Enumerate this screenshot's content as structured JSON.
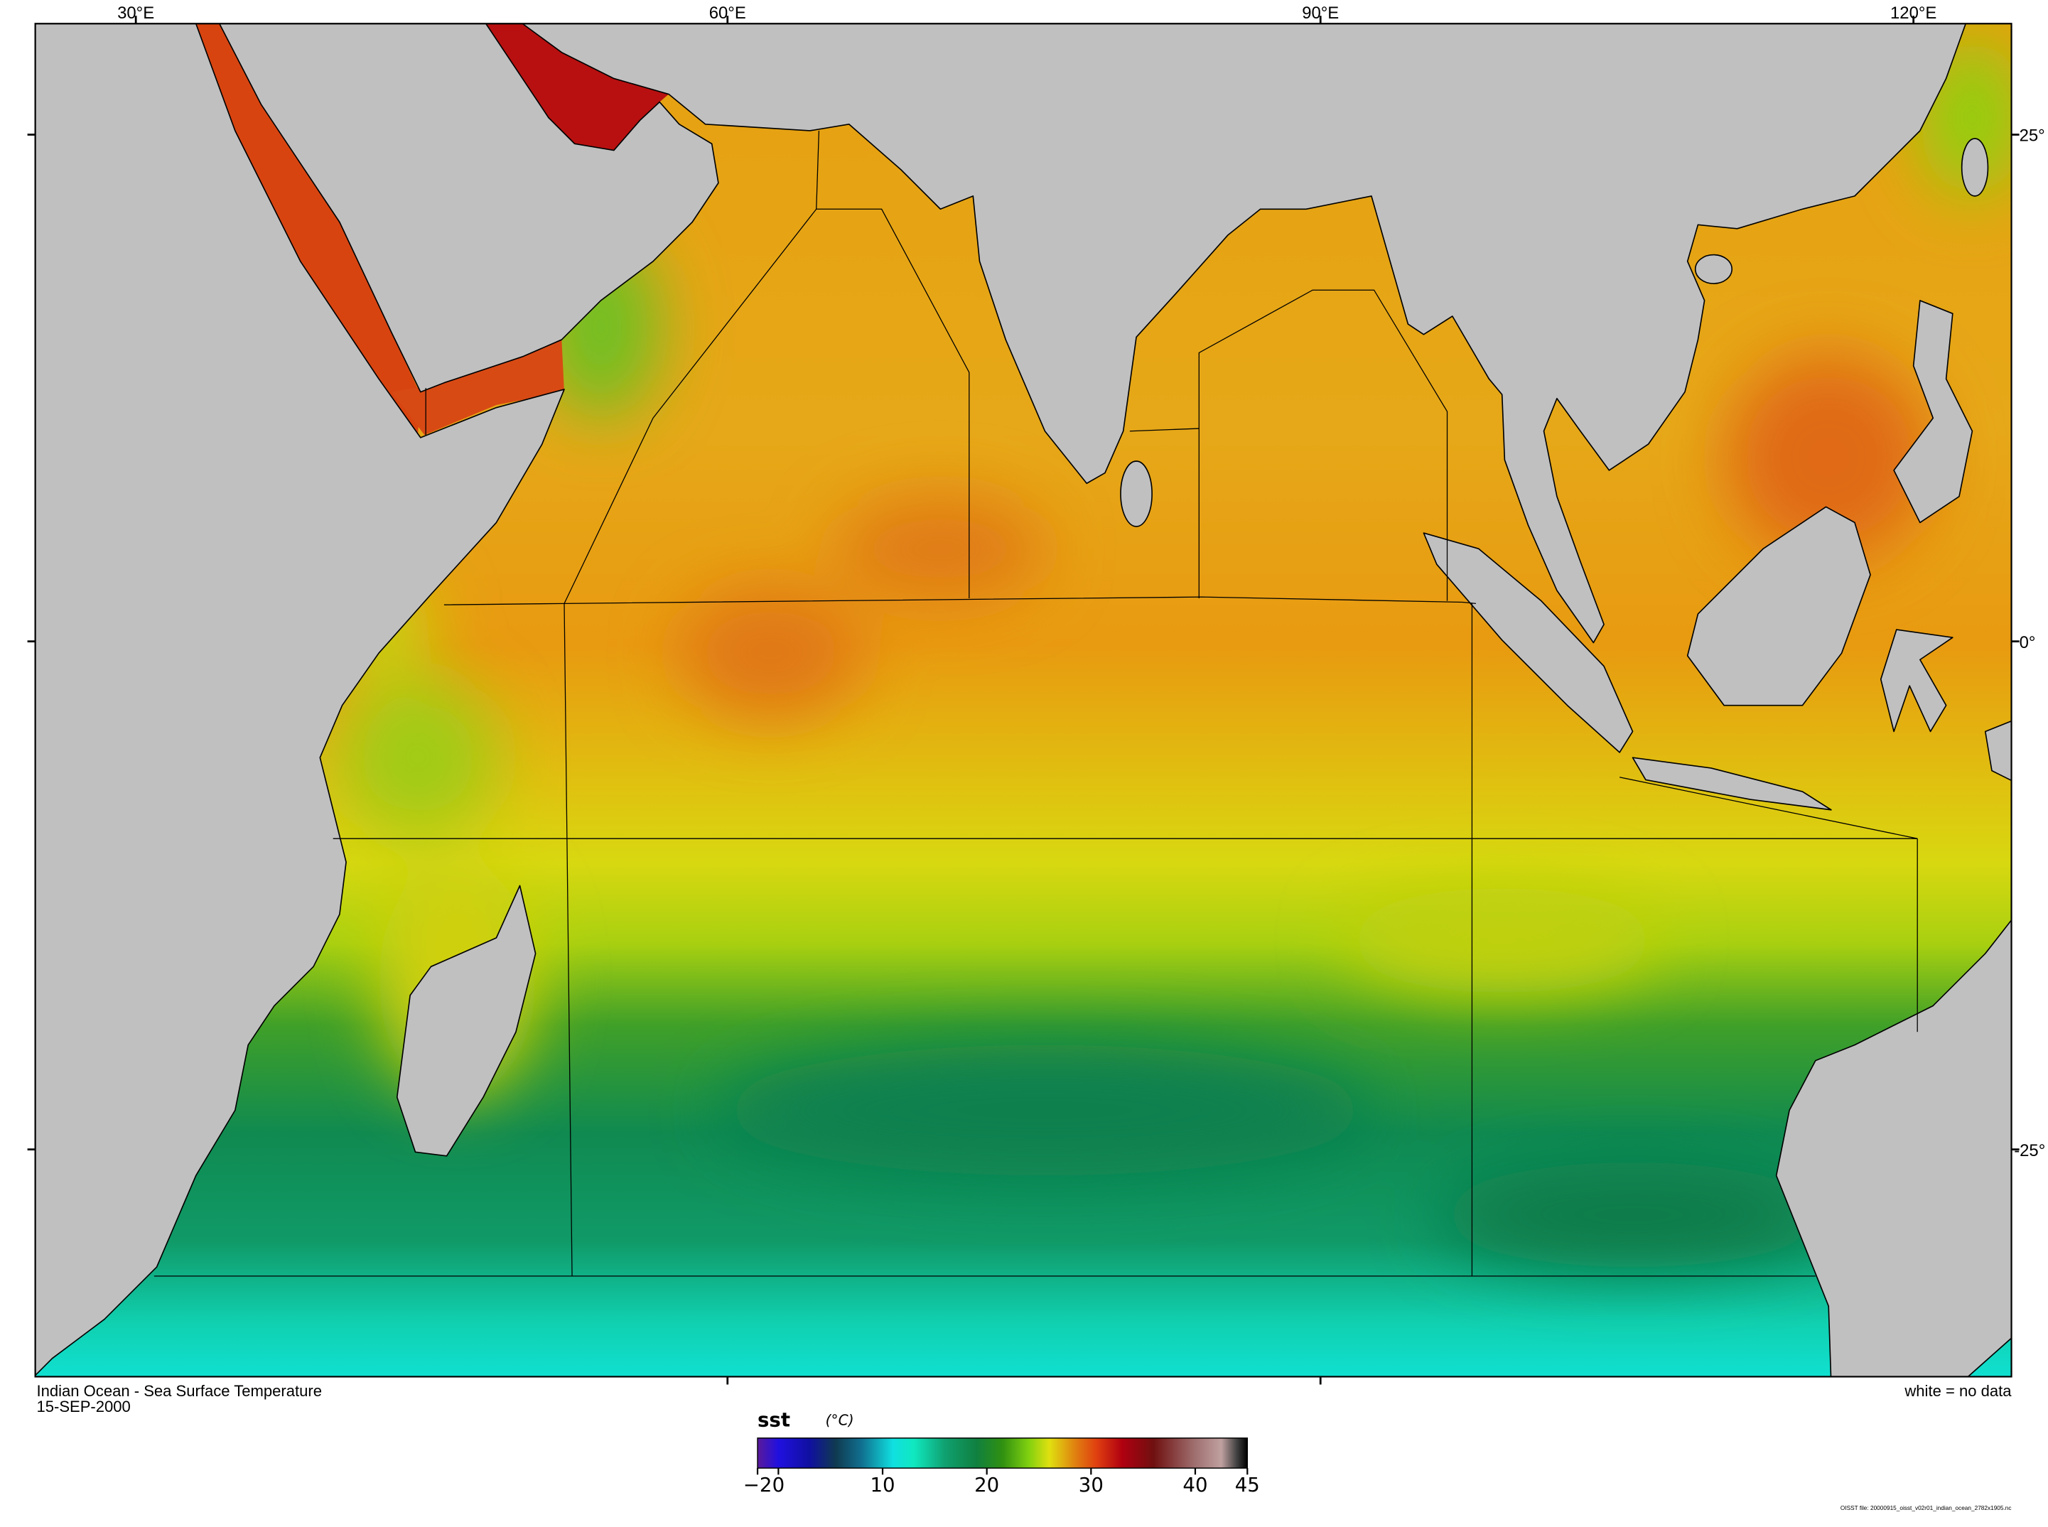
{
  "map": {
    "title": "Indian Ocean - Sea Surface Temperature",
    "date": "15-SEP-2000",
    "no_data_note": "white = no data",
    "file_note": "OISST file: 20000915_oisst_v02r01_indian_ocean_2782x1905.nc",
    "longitude_labels": [
      "30°E",
      "60°E",
      "90°E",
      "120°E"
    ],
    "latitude_labels": [
      "25°",
      "0°",
      "-25°"
    ],
    "land_color": "#c0c0c0",
    "no_data_color": "#ffffff"
  },
  "colorbar": {
    "variable": "sst",
    "unit": "(°C)",
    "range": [
      -2,
      45
    ],
    "ticks": [
      {
        "value": -2,
        "label": "-2"
      },
      {
        "value": 0,
        "label": "0"
      },
      {
        "value": 10,
        "label": "10"
      },
      {
        "value": 20,
        "label": "20"
      },
      {
        "value": 30,
        "label": "30"
      },
      {
        "value": 40,
        "label": "40"
      },
      {
        "value": 45,
        "label": "45"
      }
    ],
    "colors": [
      {
        "value": -2,
        "color": "#5a1a9a"
      },
      {
        "value": 0,
        "color": "#2010e0"
      },
      {
        "value": 3,
        "color": "#1010a0"
      },
      {
        "value": 5.5,
        "color": "#103a50"
      },
      {
        "value": 8,
        "color": "#107090"
      },
      {
        "value": 11,
        "color": "#10e0e0"
      },
      {
        "value": 13,
        "color": "#10e8c0"
      },
      {
        "value": 16,
        "color": "#10a070"
      },
      {
        "value": 19,
        "color": "#108040"
      },
      {
        "value": 21.5,
        "color": "#309010"
      },
      {
        "value": 24,
        "color": "#80d010"
      },
      {
        "value": 26,
        "color": "#e0e010"
      },
      {
        "value": 28.5,
        "color": "#e08010"
      },
      {
        "value": 30.5,
        "color": "#e04010"
      },
      {
        "value": 33,
        "color": "#b00010"
      },
      {
        "value": 36,
        "color": "#701010"
      },
      {
        "value": 40,
        "color": "#a07070"
      },
      {
        "value": 42.5,
        "color": "#c0a0a0"
      },
      {
        "value": 44,
        "color": "#404040"
      },
      {
        "value": 45,
        "color": "#000000"
      }
    ]
  }
}
